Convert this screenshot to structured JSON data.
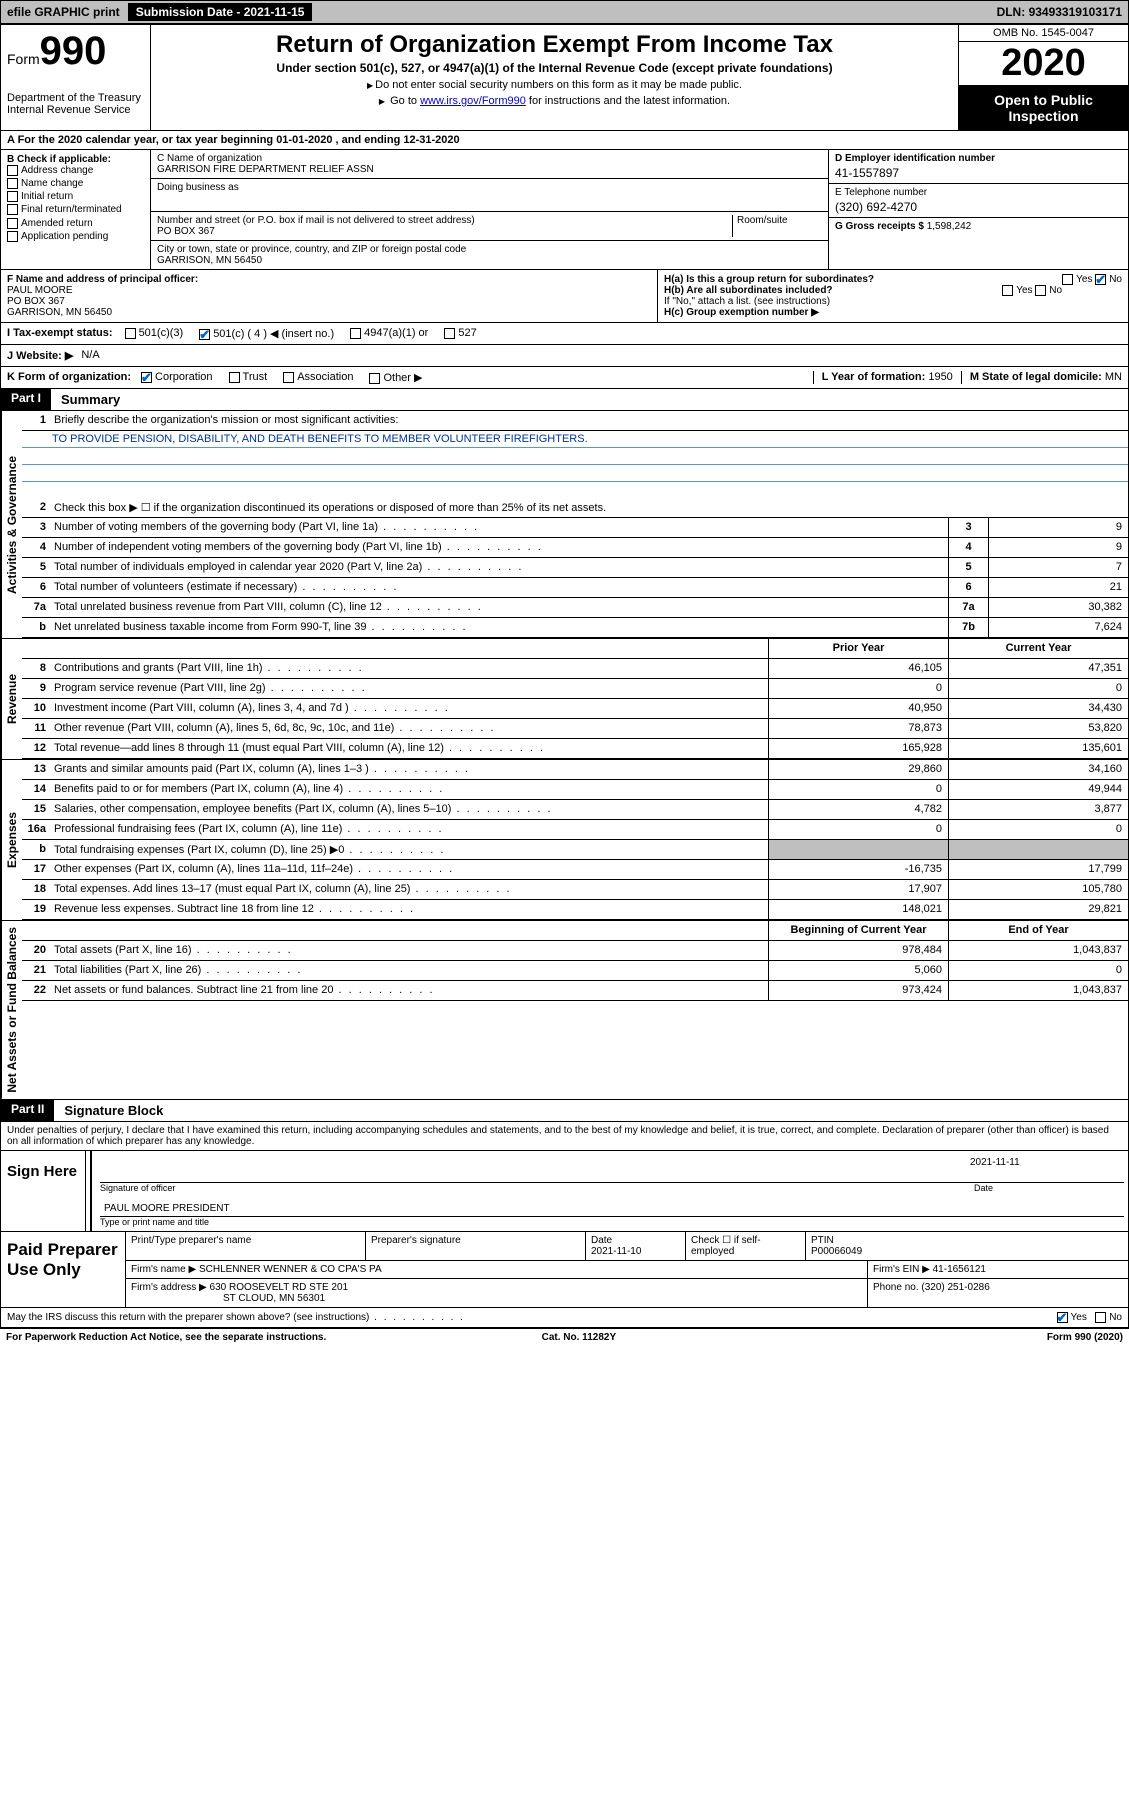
{
  "topbar": {
    "efile": "efile GRAPHIC print",
    "subdate_label": "Submission Date - ",
    "subdate": "2021-11-15",
    "dln_label": "DLN: ",
    "dln": "93493319103171"
  },
  "header": {
    "form_label": "Form",
    "form_num": "990",
    "dept": "Department of the Treasury\nInternal Revenue Service",
    "title": "Return of Organization Exempt From Income Tax",
    "subtitle": "Under section 501(c), 527, or 4947(a)(1) of the Internal Revenue Code (except private foundations)",
    "note1": "Do not enter social security numbers on this form as it may be made public.",
    "note2_pre": "Go to ",
    "note2_link": "www.irs.gov/Form990",
    "note2_post": " for instructions and the latest information.",
    "omb": "OMB No. 1545-0047",
    "year": "2020",
    "inspect": "Open to Public Inspection"
  },
  "rowA": "A For the 2020 calendar year, or tax year beginning 01-01-2020   , and ending 12-31-2020",
  "colB": {
    "hdr": "B Check if applicable:",
    "items": [
      "Address change",
      "Name change",
      "Initial return",
      "Final return/terminated",
      "Amended return",
      "Application pending"
    ]
  },
  "colC": {
    "name_label": "C Name of organization",
    "name": "GARRISON FIRE DEPARTMENT RELIEF ASSN",
    "dba_label": "Doing business as",
    "dba": "",
    "street_label": "Number and street (or P.O. box if mail is not delivered to street address)",
    "room_label": "Room/suite",
    "street": "PO BOX 367",
    "city_label": "City or town, state or province, country, and ZIP or foreign postal code",
    "city": "GARRISON, MN  56450"
  },
  "colD": {
    "ein_label": "D Employer identification number",
    "ein": "41-1557897",
    "tel_label": "E Telephone number",
    "tel": "(320) 692-4270",
    "gross_label": "G Gross receipts $ ",
    "gross": "1,598,242"
  },
  "rowF": {
    "label": "F Name and address of principal officer:",
    "name": "PAUL MOORE",
    "addr1": "PO BOX 367",
    "addr2": "GARRISON, MN  56450"
  },
  "rowH": {
    "ha": "H(a)  Is this a group return for subordinates?",
    "ha_yes": "Yes",
    "ha_no": "No",
    "hb": "H(b)  Are all subordinates included?",
    "hb_note": "If \"No,\" attach a list. (see instructions)",
    "hc": "H(c)  Group exemption number ▶"
  },
  "rowI": {
    "label": "I  Tax-exempt status:",
    "opts": [
      "501(c)(3)",
      "501(c) ( 4 ) ◀ (insert no.)",
      "4947(a)(1) or",
      "527"
    ]
  },
  "rowJ": {
    "label": "J  Website: ▶",
    "val": "N/A"
  },
  "rowK": {
    "label": "K Form of organization:",
    "opts": [
      "Corporation",
      "Trust",
      "Association",
      "Other ▶"
    ],
    "l_label": "L Year of formation: ",
    "l_val": "1950",
    "m_label": "M State of legal domicile: ",
    "m_val": "MN"
  },
  "part1": {
    "hdr": "Part I",
    "title": "Summary"
  },
  "vtabs": {
    "gov": "Activities & Governance",
    "rev": "Revenue",
    "exp": "Expenses",
    "net": "Net Assets or Fund Balances"
  },
  "summary": {
    "line1_label": "Briefly describe the organization's mission or most significant activities:",
    "line1_text": "TO PROVIDE PENSION, DISABILITY, AND DEATH BENEFITS TO MEMBER VOLUNTEER FIREFIGHTERS.",
    "line2": "Check this box ▶ ☐  if the organization discontinued its operations or disposed of more than 25% of its net assets.",
    "lines_gov": [
      {
        "n": "3",
        "t": "Number of voting members of the governing body (Part VI, line 1a)",
        "cn": "3",
        "v": "9"
      },
      {
        "n": "4",
        "t": "Number of independent voting members of the governing body (Part VI, line 1b)",
        "cn": "4",
        "v": "9"
      },
      {
        "n": "5",
        "t": "Total number of individuals employed in calendar year 2020 (Part V, line 2a)",
        "cn": "5",
        "v": "7"
      },
      {
        "n": "6",
        "t": "Total number of volunteers (estimate if necessary)",
        "cn": "6",
        "v": "21"
      },
      {
        "n": "7a",
        "t": "Total unrelated business revenue from Part VIII, column (C), line 12",
        "cn": "7a",
        "v": "30,382"
      },
      {
        "n": "b",
        "t": "Net unrelated business taxable income from Form 990-T, line 39",
        "cn": "7b",
        "v": "7,624"
      }
    ],
    "hdr_prior": "Prior Year",
    "hdr_curr": "Current Year",
    "lines_rev": [
      {
        "n": "8",
        "t": "Contributions and grants (Part VIII, line 1h)",
        "p": "46,105",
        "c": "47,351"
      },
      {
        "n": "9",
        "t": "Program service revenue (Part VIII, line 2g)",
        "p": "0",
        "c": "0"
      },
      {
        "n": "10",
        "t": "Investment income (Part VIII, column (A), lines 3, 4, and 7d )",
        "p": "40,950",
        "c": "34,430"
      },
      {
        "n": "11",
        "t": "Other revenue (Part VIII, column (A), lines 5, 6d, 8c, 9c, 10c, and 11e)",
        "p": "78,873",
        "c": "53,820"
      },
      {
        "n": "12",
        "t": "Total revenue—add lines 8 through 11 (must equal Part VIII, column (A), line 12)",
        "p": "165,928",
        "c": "135,601"
      }
    ],
    "lines_exp": [
      {
        "n": "13",
        "t": "Grants and similar amounts paid (Part IX, column (A), lines 1–3 )",
        "p": "29,860",
        "c": "34,160"
      },
      {
        "n": "14",
        "t": "Benefits paid to or for members (Part IX, column (A), line 4)",
        "p": "0",
        "c": "49,944"
      },
      {
        "n": "15",
        "t": "Salaries, other compensation, employee benefits (Part IX, column (A), lines 5–10)",
        "p": "4,782",
        "c": "3,877"
      },
      {
        "n": "16a",
        "t": "Professional fundraising fees (Part IX, column (A), line 11e)",
        "p": "0",
        "c": "0"
      },
      {
        "n": "b",
        "t": "Total fundraising expenses (Part IX, column (D), line 25) ▶0",
        "p": "",
        "c": "",
        "grey": true
      },
      {
        "n": "17",
        "t": "Other expenses (Part IX, column (A), lines 11a–11d, 11f–24e)",
        "p": "-16,735",
        "c": "17,799"
      },
      {
        "n": "18",
        "t": "Total expenses. Add lines 13–17 (must equal Part IX, column (A), line 25)",
        "p": "17,907",
        "c": "105,780"
      },
      {
        "n": "19",
        "t": "Revenue less expenses. Subtract line 18 from line 12",
        "p": "148,021",
        "c": "29,821"
      }
    ],
    "hdr_beg": "Beginning of Current Year",
    "hdr_end": "End of Year",
    "lines_net": [
      {
        "n": "20",
        "t": "Total assets (Part X, line 16)",
        "p": "978,484",
        "c": "1,043,837"
      },
      {
        "n": "21",
        "t": "Total liabilities (Part X, line 26)",
        "p": "5,060",
        "c": "0"
      },
      {
        "n": "22",
        "t": "Net assets or fund balances. Subtract line 21 from line 20",
        "p": "973,424",
        "c": "1,043,837"
      }
    ]
  },
  "part2": {
    "hdr": "Part II",
    "title": "Signature Block"
  },
  "perjury": "Under penalties of perjury, I declare that I have examined this return, including accompanying schedules and statements, and to the best of my knowledge and belief, it is true, correct, and complete. Declaration of preparer (other than officer) is based on all information of which preparer has any knowledge.",
  "sign": {
    "here": "Sign Here",
    "sig_label": "Signature of officer",
    "date_label": "Date",
    "date": "2021-11-11",
    "name": "PAUL MOORE  PRESIDENT",
    "name_label": "Type or print name and title"
  },
  "paid": {
    "left": "Paid Preparer Use Only",
    "h1": "Print/Type preparer's name",
    "h2": "Preparer's signature",
    "h3_label": "Date",
    "h3": "2021-11-10",
    "h4": "Check ☐ if self-employed",
    "h5_label": "PTIN",
    "h5": "P00066049",
    "firm_label": "Firm's name    ▶ ",
    "firm": "SCHLENNER WENNER & CO CPA'S PA",
    "ein_label": "Firm's EIN ▶ ",
    "ein": "41-1656121",
    "addr_label": "Firm's address ▶ ",
    "addr1": "630 ROOSEVELT RD STE 201",
    "addr2": "ST CLOUD, MN  56301",
    "phone_label": "Phone no. ",
    "phone": "(320) 251-0286"
  },
  "discuss": {
    "q": "May the IRS discuss this return with the preparer shown above? (see instructions)",
    "yes": "Yes",
    "no": "No"
  },
  "footer": {
    "left": "For Paperwork Reduction Act Notice, see the separate instructions.",
    "mid": "Cat. No. 11282Y",
    "right": "Form 990 (2020)"
  }
}
